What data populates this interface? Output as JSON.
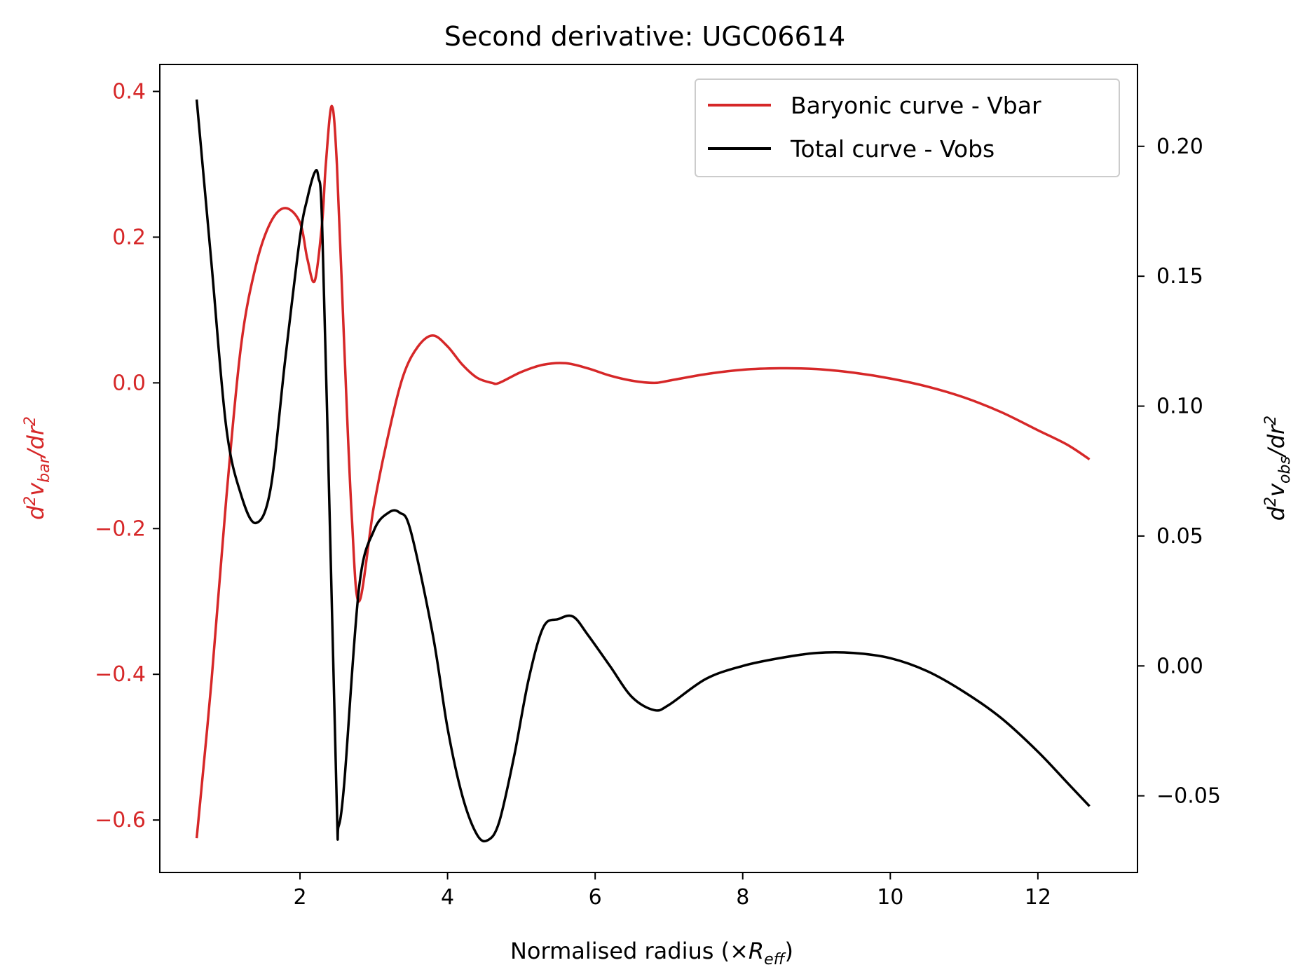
{
  "chart_data": {
    "type": "line",
    "title": "Second derivative: UGC06614",
    "xlabel": "Normalised radius (×R_eff)",
    "xlabel_main": "Normalised radius (×",
    "xlabel_sym": "R",
    "xlabel_sub": "eff",
    "xlabel_close": ")",
    "ylabel_left": "d²v_bar/dr²",
    "ylabel_right": "d²v_obs/dr²",
    "xlim": [
      0.1,
      13.35
    ],
    "ylim_left": [
      -0.672,
      0.437
    ],
    "ylim_right": [
      -0.0795,
      0.2315
    ],
    "x_ticks": [
      2,
      4,
      6,
      8,
      10,
      12
    ],
    "y_left_ticks": [
      0.4,
      0.2,
      0.0,
      -0.2,
      -0.4,
      -0.6
    ],
    "y_left_tick_labels": [
      "0.4",
      "0.2",
      "0.0",
      "−0.2",
      "−0.4",
      "−0.6"
    ],
    "y_right_ticks": [
      0.2,
      0.15,
      0.1,
      0.05,
      0.0,
      -0.05
    ],
    "y_right_tick_labels": [
      "0.20",
      "0.15",
      "0.10",
      "0.05",
      "0.00",
      "−0.05"
    ],
    "legend_position": "top-right",
    "colors": {
      "bar": "#d62728",
      "obs": "#000000"
    },
    "series": [
      {
        "name": "Baryonic curve - Vbar",
        "axis": "left",
        "color": "#d62728",
        "x": [
          0.6,
          0.8,
          1.0,
          1.2,
          1.4,
          1.6,
          1.8,
          2.0,
          2.1,
          2.2,
          2.3,
          2.35,
          2.43,
          2.5,
          2.6,
          2.7,
          2.8,
          3.0,
          3.2,
          3.4,
          3.6,
          3.8,
          4.0,
          4.2,
          4.4,
          4.6,
          4.7,
          5.0,
          5.3,
          5.6,
          5.9,
          6.2,
          6.5,
          6.8,
          7.0,
          7.5,
          8.0,
          8.5,
          9.0,
          9.5,
          10.0,
          10.5,
          11.0,
          11.5,
          12.0,
          12.4,
          12.7
        ],
        "y": [
          -0.625,
          -0.41,
          -0.16,
          0.05,
          0.16,
          0.22,
          0.24,
          0.22,
          0.17,
          0.14,
          0.22,
          0.3,
          0.38,
          0.3,
          0.05,
          -0.18,
          -0.3,
          -0.17,
          -0.07,
          0.01,
          0.05,
          0.065,
          0.05,
          0.025,
          0.007,
          0.0,
          0.0,
          0.015,
          0.025,
          0.027,
          0.02,
          0.01,
          0.003,
          0.0,
          0.003,
          0.012,
          0.018,
          0.02,
          0.019,
          0.014,
          0.006,
          -0.005,
          -0.02,
          -0.04,
          -0.065,
          -0.085,
          -0.105
        ]
      },
      {
        "name": "Total curve - Vobs",
        "axis": "right",
        "color": "#000000",
        "x": [
          0.6,
          0.8,
          1.0,
          1.2,
          1.4,
          1.6,
          1.8,
          2.0,
          2.1,
          2.2,
          2.25,
          2.3,
          2.4,
          2.5,
          2.52,
          2.6,
          2.8,
          3.0,
          3.2,
          3.35,
          3.5,
          3.8,
          4.0,
          4.2,
          4.4,
          4.55,
          4.7,
          4.9,
          5.1,
          5.3,
          5.5,
          5.7,
          5.9,
          6.2,
          6.5,
          6.8,
          7.0,
          7.5,
          8.0,
          8.5,
          9.0,
          9.5,
          10.0,
          10.5,
          11.0,
          11.5,
          12.0,
          12.4,
          12.7
        ],
        "y": [
          0.218,
          0.155,
          0.092,
          0.066,
          0.055,
          0.068,
          0.118,
          0.165,
          0.18,
          0.19,
          0.188,
          0.17,
          0.06,
          -0.055,
          -0.062,
          -0.045,
          0.03,
          0.052,
          0.059,
          0.059,
          0.052,
          0.012,
          -0.024,
          -0.05,
          -0.065,
          -0.067,
          -0.06,
          -0.035,
          -0.005,
          0.015,
          0.018,
          0.019,
          0.012,
          0.0,
          -0.012,
          -0.017,
          -0.015,
          -0.005,
          0.0,
          0.003,
          0.005,
          0.005,
          0.003,
          -0.002,
          -0.01,
          -0.02,
          -0.033,
          -0.045,
          -0.054
        ]
      }
    ]
  }
}
